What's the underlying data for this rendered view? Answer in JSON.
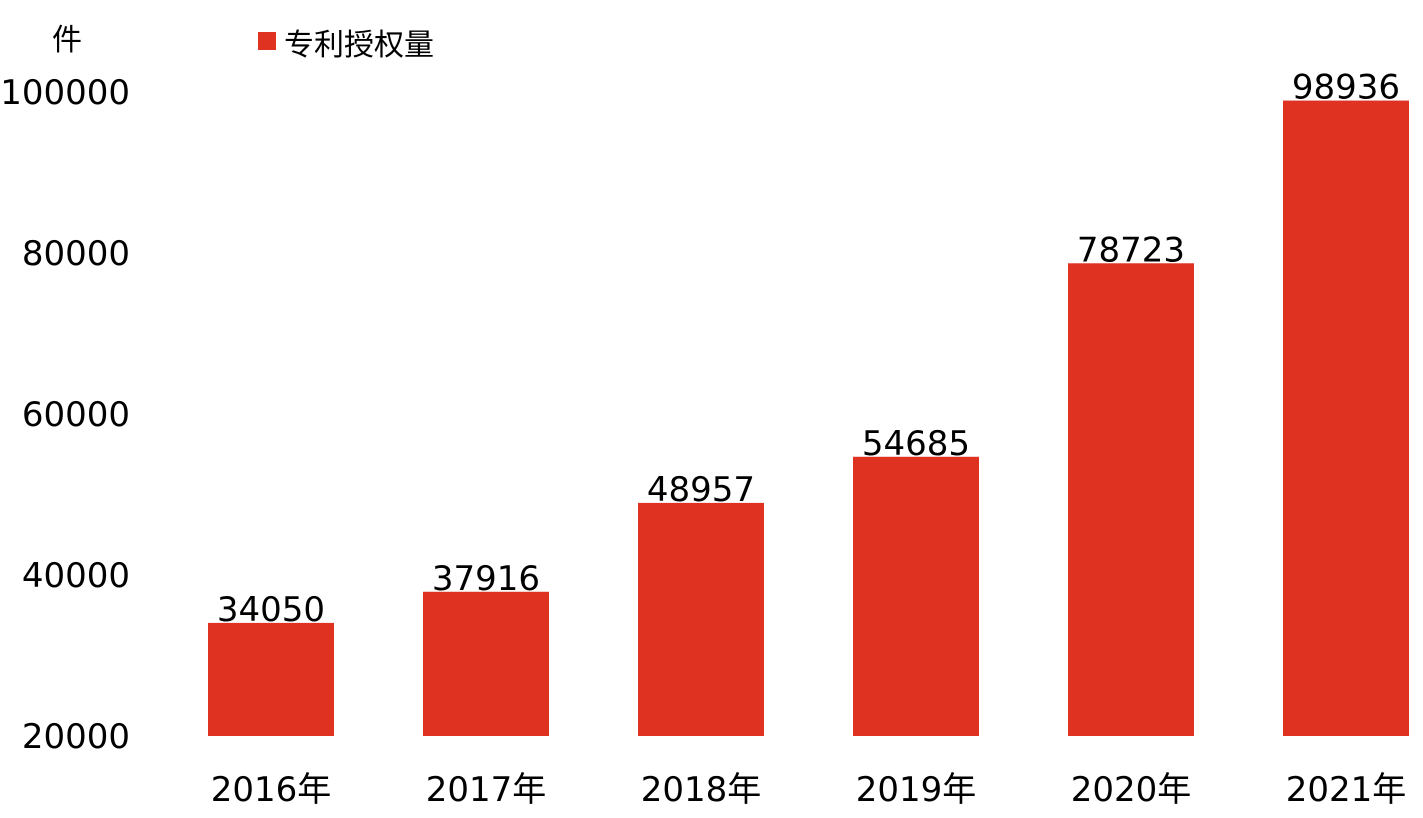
{
  "chart_data": {
    "type": "bar",
    "unit_label": "件",
    "categories": [
      "2016年",
      "2017年",
      "2018年",
      "2019年",
      "2020年",
      "2021年"
    ],
    "series": [
      {
        "name": "专利授权量",
        "values": [
          34050,
          37916,
          48957,
          54685,
          78723,
          98936
        ]
      }
    ],
    "data_labels": [
      "34050",
      "37916",
      "48957",
      "54685",
      "78723",
      "98936"
    ],
    "yticks": [
      "20000",
      "40000",
      "60000",
      "80000",
      "100000"
    ],
    "ytick_values": [
      20000,
      40000,
      60000,
      80000,
      100000
    ],
    "ylim": [
      20000,
      100000
    ],
    "grid": false,
    "legend_position": "top-left",
    "colors": {
      "bar": "#e03220"
    }
  }
}
